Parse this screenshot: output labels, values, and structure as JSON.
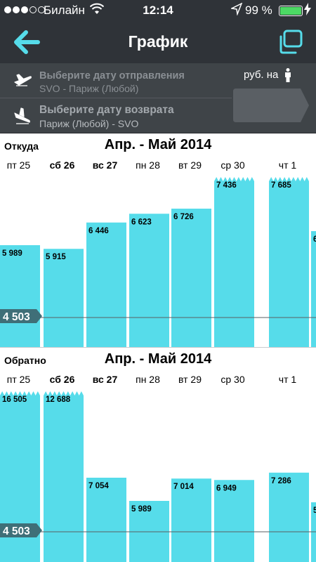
{
  "status_bar": {
    "carrier": "Билайн",
    "time": "12:14",
    "battery": "99 %",
    "battery_level": 0.99
  },
  "nav": {
    "title": "График",
    "back_icon": "arrow-left-icon",
    "right_icon": "copy-icon",
    "accent_color": "#56dcea"
  },
  "search": {
    "outbound_label": "Выберите дату отправления",
    "outbound_route": "SVO - Париж (Любой)",
    "return_label": "Выберите дату возврата",
    "return_route": "Париж (Любой) - SVO",
    "currency_label": "руб. на",
    "currency_icon": "person-icon"
  },
  "charts": [
    {
      "section": "Откуда",
      "title": "Апр. - Май 2014",
      "min_label": "4 503"
    },
    {
      "section": "Обратно",
      "title": "Апр. - Май 2014",
      "min_label": "4 503"
    }
  ],
  "chart_data": [
    {
      "type": "bar",
      "title": "Апр. - Май 2014",
      "categories": [
        "пт 25",
        "сб 26",
        "вс 27",
        "пн 28",
        "вт 29",
        "ср 30",
        "",
        "чт 1",
        ""
      ],
      "category_bold": [
        false,
        true,
        true,
        false,
        false,
        false,
        false,
        false,
        false
      ],
      "values": [
        5989,
        5915,
        6446,
        6623,
        6726,
        7436,
        null,
        7685,
        null
      ],
      "value_labels": [
        "5 989",
        "5 915",
        "6 446",
        "6 623",
        "6 726",
        "7 436",
        "",
        "7 685",
        "6"
      ],
      "truncated": [
        false,
        false,
        false,
        false,
        false,
        true,
        false,
        true,
        false
      ],
      "reference_line": 4503,
      "reference_label": "4 503",
      "bar_color": "#56dcea"
    },
    {
      "type": "bar",
      "title": "Апр. - Май 2014",
      "categories": [
        "пт 25",
        "сб 26",
        "вс 27",
        "пн 28",
        "вт 29",
        "ср 30",
        "",
        "чт 1",
        ""
      ],
      "category_bold": [
        false,
        true,
        true,
        false,
        false,
        false,
        false,
        false,
        false
      ],
      "values": [
        16505,
        12688,
        7054,
        5989,
        7014,
        6949,
        null,
        7286,
        null
      ],
      "value_labels": [
        "16 505",
        "12 688",
        "7 054",
        "5 989",
        "7 014",
        "6 949",
        "",
        "7 286",
        "5"
      ],
      "truncated": [
        true,
        true,
        false,
        false,
        false,
        false,
        false,
        false,
        false
      ],
      "reference_line": 4503,
      "reference_label": "4 503",
      "bar_color": "#56dcea"
    }
  ]
}
